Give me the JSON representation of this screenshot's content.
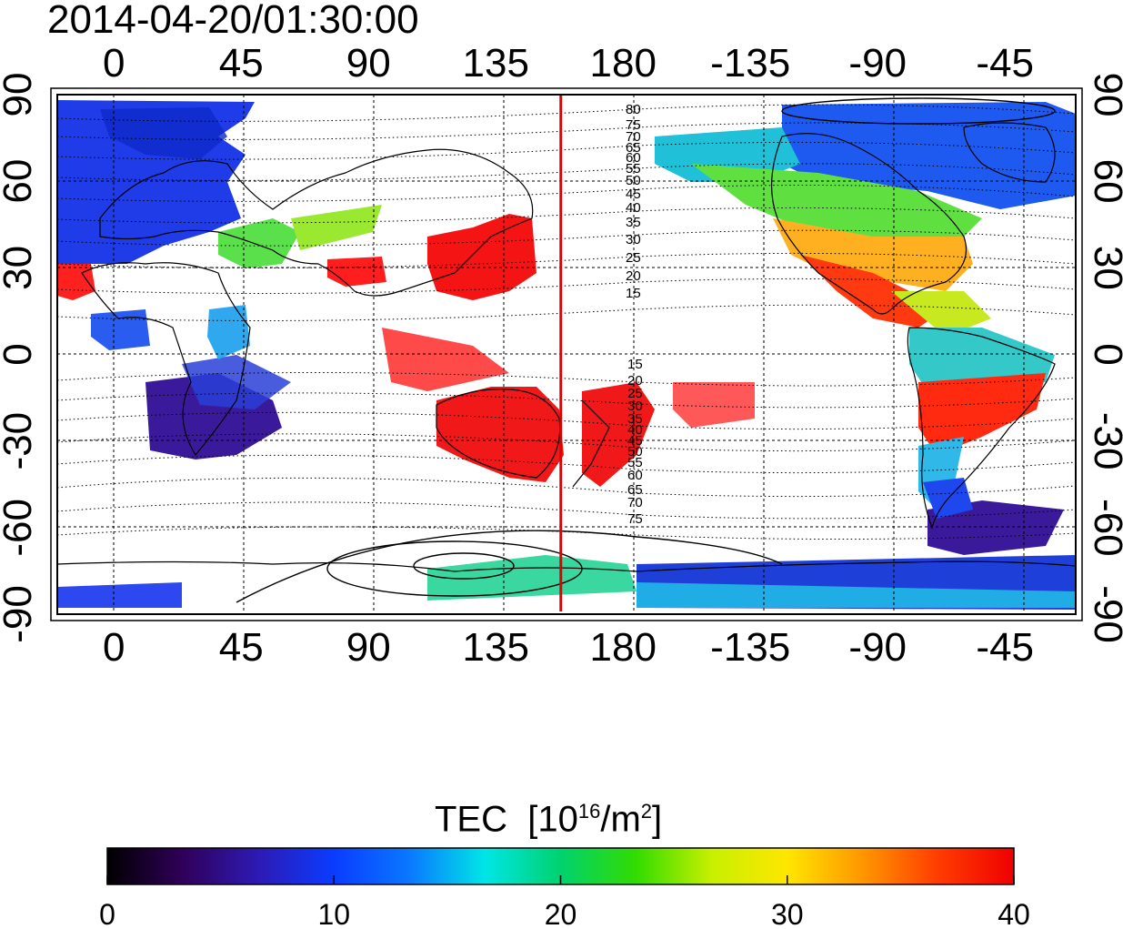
{
  "title": "2014-04-20/01:30:00",
  "map": {
    "lon_ticks": [
      "0",
      "45",
      "90",
      "135",
      "180",
      "-135",
      "-90",
      "-45"
    ],
    "lat_ticks": [
      "90",
      "60",
      "30",
      "0",
      "-30",
      "-60",
      "-90"
    ],
    "lon_range": [
      -20,
      340
    ],
    "lat_range": [
      -90,
      90
    ],
    "reference_meridian_lon": 158,
    "reference_meridian_color": "#e00000",
    "magnetic_contour_labels_north": [
      "80",
      "75",
      "70",
      "65",
      "60",
      "55",
      "50",
      "45",
      "40",
      "35",
      "30",
      "25",
      "20",
      "15"
    ],
    "magnetic_contour_labels_south": [
      "15",
      "20",
      "25",
      "30",
      "35",
      "40",
      "45",
      "50",
      "55",
      "60",
      "65",
      "70",
      "75"
    ]
  },
  "colorbar": {
    "title": "TEC",
    "unit_prefix": "[10",
    "unit_exp": "16",
    "unit_mid": "/m",
    "unit_exp2": "2",
    "unit_suffix": "]",
    "ticks": [
      "0",
      "10",
      "20",
      "30",
      "40"
    ],
    "range": [
      0,
      40
    ],
    "stops": [
      "#000000",
      "#30005a",
      "#2d1ab4",
      "#0a3cff",
      "#0a78ff",
      "#00e6e6",
      "#00d26e",
      "#32dc00",
      "#c8f000",
      "#ffe600",
      "#ff9600",
      "#ff3c00",
      "#f00000"
    ]
  }
}
